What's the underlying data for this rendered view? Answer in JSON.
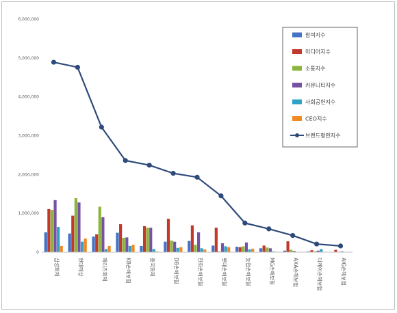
{
  "chart_data": {
    "type": "bar",
    "combo": "bar+line",
    "categories": [
      "삼성화재",
      "현대해상",
      "메리츠화재",
      "KB손해보험",
      "흥국화재",
      "DB손해보험",
      "한화손해보험",
      "롯데손해보험",
      "농협손해보험",
      "MG손해보험",
      "AXA손해보험",
      "더케이손해보험",
      "AIG손해보험"
    ],
    "series": [
      {
        "name": "참여지수",
        "kind": "bar",
        "color": "#4472c4",
        "values": [
          510000,
          480000,
          400000,
          500000,
          160000,
          270000,
          290000,
          170000,
          140000,
          100000,
          40000,
          20000,
          10000
        ]
      },
      {
        "name": "미디어지수",
        "kind": "bar",
        "color": "#c0392b",
        "values": [
          1110000,
          940000,
          460000,
          720000,
          670000,
          860000,
          690000,
          630000,
          130000,
          170000,
          280000,
          50000,
          60000
        ]
      },
      {
        "name": "소통지수",
        "kind": "bar",
        "color": "#8db43f",
        "values": [
          1090000,
          1390000,
          1170000,
          370000,
          630000,
          300000,
          190000,
          20000,
          150000,
          120000,
          60000,
          20000,
          10000
        ]
      },
      {
        "name": "커뮤니티지수",
        "kind": "bar",
        "color": "#7552a3",
        "values": [
          1340000,
          1280000,
          900000,
          380000,
          630000,
          270000,
          510000,
          230000,
          250000,
          100000,
          30000,
          40000,
          20000
        ]
      },
      {
        "name": "사회공헌지수",
        "kind": "bar",
        "color": "#2fa3c6",
        "values": [
          650000,
          270000,
          80000,
          160000,
          80000,
          110000,
          100000,
          150000,
          70000,
          20000,
          10000,
          80000,
          10000
        ]
      },
      {
        "name": "CEO지수",
        "kind": "bar",
        "color": "#f08a24",
        "values": [
          160000,
          350000,
          160000,
          190000,
          20000,
          130000,
          70000,
          130000,
          90000,
          10000,
          10000,
          10000,
          10000
        ]
      },
      {
        "name": "브랜드평판지수",
        "kind": "line",
        "color": "#2e4a7a",
        "values": [
          4890000,
          4760000,
          3220000,
          2360000,
          2240000,
          2030000,
          1930000,
          1450000,
          750000,
          600000,
          430000,
          210000,
          160000
        ]
      }
    ],
    "yticks": [
      "0",
      "1,000,000",
      "2,000,000",
      "3,000,000",
      "4,000,000",
      "5,000,000",
      "6,000,000"
    ],
    "ylim": [
      0,
      6000000
    ],
    "grid": false,
    "legend_position": "top-right",
    "title": "",
    "xlabel": "",
    "ylabel": ""
  }
}
